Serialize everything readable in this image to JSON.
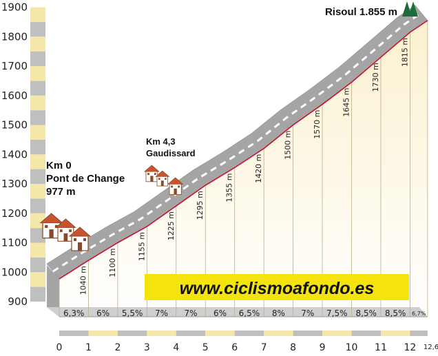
{
  "chart_data": {
    "type": "area",
    "title": "",
    "xlabel": "",
    "ylabel": "",
    "x": [
      0,
      1,
      2,
      3,
      4,
      5,
      6,
      7,
      8,
      9,
      10,
      11,
      12,
      12.6
    ],
    "y": [
      977,
      1040,
      1100,
      1155,
      1225,
      1295,
      1355,
      1420,
      1500,
      1570,
      1645,
      1730,
      1815,
      1855
    ],
    "xlim": [
      0,
      12.6
    ],
    "ylim": [
      900,
      1900
    ],
    "x_ticks": [
      "0",
      "1",
      "2",
      "3",
      "4",
      "5",
      "6",
      "7",
      "8",
      "9",
      "10",
      "11",
      "12",
      "12,6"
    ],
    "y_ticks": [
      "900",
      "1000",
      "1100",
      "1200",
      "1300",
      "1400",
      "1500",
      "1600",
      "1700",
      "1800",
      "1900"
    ],
    "altitude_labels": [
      "1040 m",
      "1100 m",
      "1155 m",
      "1225 m",
      "1295 m",
      "1355 m",
      "1420 m",
      "1500 m",
      "1570 m",
      "1645 m",
      "1730 m",
      "1815 m"
    ],
    "gradients": [
      "6,3%",
      "6%",
      "5,5%",
      "7%",
      "7%",
      "6%",
      "6,5%",
      "8%",
      "7%",
      "7,5%",
      "8,5%",
      "8,5%",
      "6,7%"
    ],
    "annotations": {
      "start": [
        "Km 0",
        "Pont de Change",
        "977 m"
      ],
      "midpoint": [
        "Km 4,3",
        "Gaudissard"
      ],
      "summit": "Risoul 1.855 m"
    },
    "website": "www.ciclismoafondo.es",
    "grid": true,
    "colors": {
      "fill": "#fbf5dc",
      "profile_line": "#c8102e",
      "road": "#a5a5a5",
      "website_bg": "#f4e40c",
      "tree": "#1f6b3a"
    }
  }
}
